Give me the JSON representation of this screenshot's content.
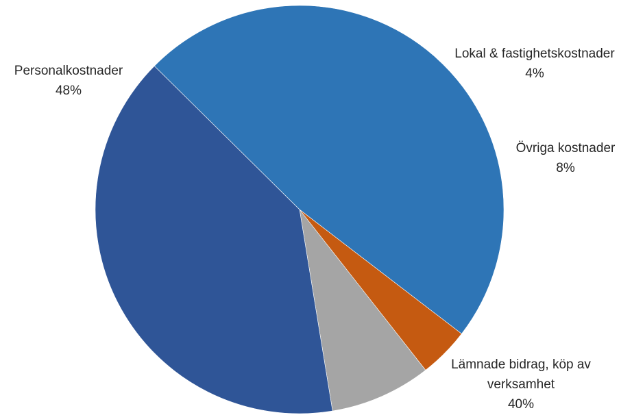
{
  "chart_data": {
    "type": "pie",
    "title": "",
    "slices": [
      {
        "name": "Personalkostnader",
        "value": 48,
        "label": "48%",
        "color": "#2e75b6",
        "label_lines": [
          "Personalkostnader",
          "48%"
        ]
      },
      {
        "name": "Lokal & fastighetskostnader",
        "value": 4,
        "label": "4%",
        "color": "#c55a11",
        "label_lines": [
          "Lokal & fastighetskostnader",
          "4%"
        ]
      },
      {
        "name": "Övriga kostnader",
        "value": 8,
        "label": "8%",
        "color": "#a5a5a5",
        "label_lines": [
          "Övriga kostnader",
          "8%"
        ]
      },
      {
        "name": "Lämnade bidrag, köp av verksamhet",
        "value": 40,
        "label": "40%",
        "color": "#2f5597",
        "label_lines": [
          "Lämnade bidrag, köp av",
          "verksamhet",
          "40%"
        ]
      }
    ],
    "legend": "none"
  }
}
